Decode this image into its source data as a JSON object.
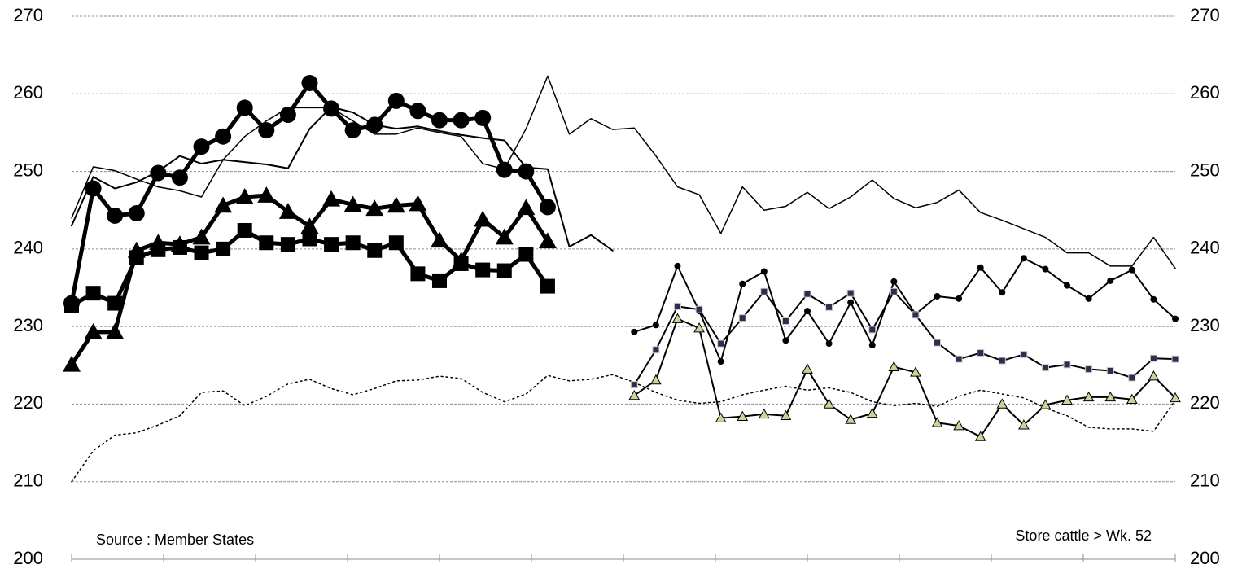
{
  "chart_data": {
    "type": "line",
    "annotations": [
      "Source : Member States",
      "Store cattle > Wk. 52"
    ],
    "categories": [
      null,
      null,
      null,
      null,
      null,
      null,
      null,
      null,
      null,
      null,
      null,
      null,
      null,
      null,
      null,
      null,
      null,
      null,
      null,
      null,
      null,
      null,
      null,
      null,
      null,
      null,
      null,
      null,
      null,
      null,
      null,
      null,
      null,
      null,
      null,
      null,
      null,
      null,
      null,
      null,
      null,
      null,
      null,
      null,
      null,
      null,
      null,
      null,
      null,
      null,
      null,
      null
    ],
    "ylim": [
      200,
      270
    ],
    "yticks": [
      200,
      210,
      220,
      230,
      240,
      250,
      260,
      270
    ],
    "y2lim": [
      200,
      270
    ],
    "y2ticks": [
      200,
      210,
      220,
      230,
      240,
      250,
      260,
      270
    ],
    "grid": true,
    "series": [
      {
        "color": "#000000",
        "width": 1.5,
        "dash": "dot",
        "values": [
          210,
          214,
          216,
          216.3,
          217.3,
          218.5,
          221.5,
          221.7,
          219.8,
          221,
          222.6,
          223.2,
          222,
          221.2,
          222,
          223,
          223.1,
          223.6,
          223.3,
          221.5,
          220.3,
          221.3,
          223.7,
          223,
          223.2,
          223.8,
          222.8,
          221.5,
          220.5,
          220.1,
          220.3,
          221.2,
          221.8,
          222.3,
          221.8,
          222.1,
          221.5,
          220.3,
          219.8,
          220.1,
          219.7,
          221,
          221.8,
          221.3,
          220.8,
          219.5,
          218.5,
          217,
          216.8,
          216.8,
          216.5,
          220.5
        ]
      },
      {
        "color": "#000000",
        "width": 1.5,
        "values": [
          244,
          250.6,
          250.1,
          249,
          248,
          247.5,
          246.7,
          251.5,
          254.5,
          256.5,
          258.2,
          258.2,
          258.2,
          256.5,
          254.8,
          254.8,
          255.6,
          255,
          254.5,
          251,
          250.3,
          255.5,
          262.3,
          254.8,
          256.8,
          255.4,
          255.6,
          252,
          248,
          247,
          242,
          248,
          245,
          245.5,
          247.3,
          245.2,
          246.7,
          248.9,
          246.5,
          245.3,
          246,
          247.6,
          244.7,
          243.7,
          242.6,
          241.5,
          239.5,
          239.5,
          237.8,
          237.8,
          241.5,
          237.5
        ]
      },
      {
        "color": "#000000",
        "width": 2,
        "values": [
          243,
          249.3,
          247.8,
          248.6,
          250,
          252,
          251,
          251.5,
          251.2,
          250.9,
          250.4,
          255.5,
          258.3,
          257.6,
          256,
          255.5,
          255.8,
          255.2,
          254.7,
          254.3,
          254,
          250.5,
          250.3,
          240.3,
          241.8,
          239.8,
          null,
          null,
          null,
          null,
          null,
          null,
          null,
          null,
          null,
          null,
          null,
          null,
          null,
          null,
          null,
          null,
          null,
          null,
          null,
          null,
          null,
          null,
          null,
          null,
          null,
          null
        ]
      },
      {
        "color": "#000000",
        "width": 5,
        "marker": "circle",
        "size": 10,
        "values": [
          233,
          247.8,
          244.3,
          244.6,
          249.8,
          249.2,
          253.2,
          254.5,
          258.2,
          255.3,
          257.3,
          261.4,
          258.1,
          255.3,
          256,
          259.1,
          257.8,
          256.6,
          256.6,
          256.9,
          250.2,
          250,
          245.4,
          null,
          null,
          null,
          null,
          null,
          null,
          null,
          null,
          null,
          null,
          null,
          null,
          null,
          null,
          null,
          null,
          null,
          null,
          null,
          null,
          null,
          null,
          null,
          null,
          null,
          null,
          null,
          null,
          null
        ]
      },
      {
        "color": "#000000",
        "width": 5,
        "marker": "square",
        "size": 9,
        "values": [
          232.7,
          234.3,
          233,
          238.9,
          239.9,
          240.2,
          239.5,
          240,
          242.4,
          240.8,
          240.6,
          241.3,
          240.6,
          240.8,
          239.8,
          240.8,
          236.8,
          235.9,
          238.1,
          237.3,
          237.2,
          239.3,
          235.2,
          null,
          null,
          null,
          null,
          null,
          null,
          null,
          null,
          null,
          null,
          null,
          null,
          null,
          null,
          null,
          null,
          null,
          null,
          null,
          null,
          null,
          null,
          null,
          null,
          null,
          null,
          null,
          null,
          null
        ]
      },
      {
        "color": "#000000",
        "width": 5,
        "marker": "triangle",
        "size": 11,
        "values": [
          225.1,
          229.3,
          229.3,
          239.8,
          240.8,
          240.6,
          241.5,
          245.6,
          246.7,
          246.9,
          244.8,
          242.9,
          246.4,
          245.7,
          245.2,
          245.6,
          245.8,
          241.1,
          238.5,
          243.8,
          241.5,
          245.3,
          241,
          null,
          null,
          null,
          null,
          null,
          null,
          null,
          null,
          null,
          null,
          null,
          null,
          null,
          null,
          null,
          null,
          null,
          null,
          null,
          null,
          null,
          null,
          null,
          null,
          null,
          null,
          null,
          null,
          null
        ]
      },
      {
        "color": "#000000",
        "width": 2,
        "marker": "circle",
        "size": 4,
        "values": [
          null,
          null,
          null,
          null,
          null,
          null,
          null,
          null,
          null,
          null,
          null,
          null,
          null,
          null,
          null,
          null,
          null,
          null,
          null,
          null,
          null,
          null,
          null,
          null,
          null,
          null,
          229.3,
          230.2,
          237.8,
          232,
          225.5,
          235.5,
          237.1,
          228.2,
          232,
          227.8,
          233.1,
          227.6,
          235.8,
          231.6,
          233.9,
          233.6,
          237.6,
          234.4,
          238.8,
          237.4,
          235.3,
          233.6,
          235.9,
          237.3,
          233.5,
          231
        ]
      },
      {
        "color": "#000000",
        "width": 2,
        "marker": "square",
        "size": 4,
        "marker_color": "#2d2d50",
        "values": [
          null,
          null,
          null,
          null,
          null,
          null,
          null,
          null,
          null,
          null,
          null,
          null,
          null,
          null,
          null,
          null,
          null,
          null,
          null,
          null,
          null,
          null,
          null,
          null,
          null,
          null,
          222.5,
          227,
          232.6,
          232.2,
          227.8,
          231.1,
          234.5,
          230.7,
          234.2,
          232.5,
          234.3,
          229.6,
          234.5,
          231.5,
          227.9,
          225.8,
          226.6,
          225.6,
          226.4,
          224.7,
          225.1,
          224.5,
          224.3,
          223.4,
          225.9,
          225.8
        ]
      },
      {
        "color": "#000000",
        "width": 2,
        "marker": "triangle",
        "size": 6,
        "marker_color": "#c9d49a",
        "values": [
          null,
          null,
          null,
          null,
          null,
          null,
          null,
          null,
          null,
          null,
          null,
          null,
          null,
          null,
          null,
          null,
          null,
          null,
          null,
          null,
          null,
          null,
          null,
          null,
          null,
          null,
          221.1,
          223.1,
          231,
          229.8,
          218.2,
          218.4,
          218.7,
          218.5,
          224.5,
          220,
          218,
          218.8,
          224.8,
          224.1,
          217.6,
          217.2,
          215.8,
          220,
          217.3,
          219.9,
          220.5,
          220.9,
          220.9,
          220.6,
          223.6,
          220.8
        ]
      }
    ]
  }
}
